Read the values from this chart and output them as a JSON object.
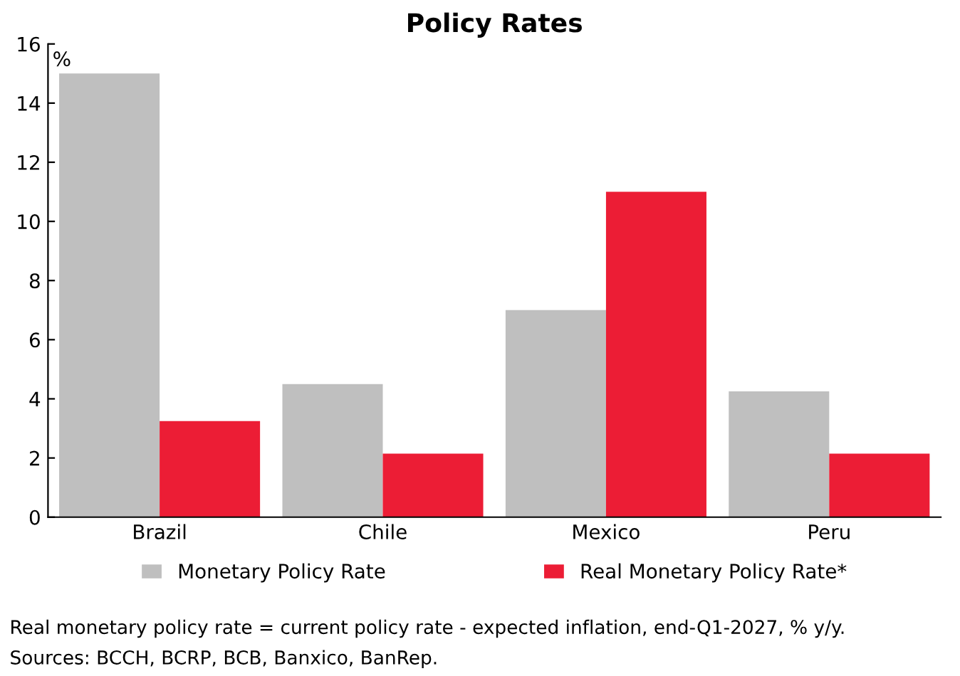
{
  "chart_data": {
    "type": "bar",
    "title": "Policy Rates",
    "ylabel": "%",
    "categories": [
      "Brazil",
      "Chile",
      "Mexico",
      "Peru"
    ],
    "series": [
      {
        "name": "Monetary Policy Rate",
        "color": "#bfbfbf",
        "values": [
          15,
          4.5,
          7,
          4.25
        ]
      },
      {
        "name": "Real Monetary Policy Rate*",
        "color": "#ec1d35",
        "values": [
          3.25,
          2.15,
          11,
          2.15
        ]
      }
    ],
    "ylim": [
      0,
      16
    ],
    "yticks": [
      0,
      2,
      4,
      6,
      8,
      10,
      12,
      14,
      16
    ],
    "grid": false,
    "legend": "bottom",
    "annotations": [
      "Real monetary policy rate = current policy rate - expected inflation, end-Q1-2027, % y/y.",
      "Sources: BCCH, BCRP, BCB, Banxico, BanRep."
    ]
  }
}
